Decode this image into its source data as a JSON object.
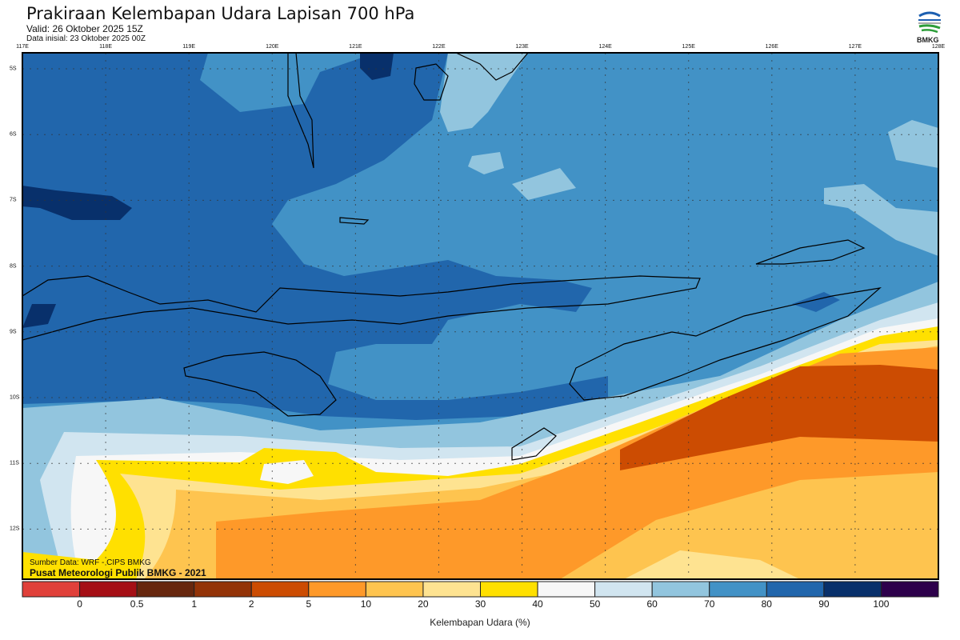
{
  "header": {
    "title": "Prakiraan Kelembapan Udara Lapisan 700 hPa",
    "valid": "Valid: 26 Oktober 2025 15Z",
    "initial": "Data inisial: 23 Oktober 2025 00Z",
    "logo_text": "BMKG"
  },
  "axes": {
    "longitudes": [
      "117E",
      "118E",
      "119E",
      "120E",
      "121E",
      "122E",
      "123E",
      "124E",
      "125E",
      "126E",
      "127E",
      "128E"
    ],
    "latitudes": [
      "5S",
      "6S",
      "7S",
      "8S",
      "9S",
      "10S",
      "11S",
      "12S"
    ]
  },
  "credits": {
    "source": "Sumber Data: WRF - CIPS BMKG",
    "org": "Pusat Meteorologi Publik BMKG - 2021"
  },
  "colorbar": {
    "title": "Kelembapan Udara (%)",
    "labels": [
      "0",
      "0.5",
      "1",
      "2",
      "5",
      "10",
      "20",
      "30",
      "40",
      "50",
      "60",
      "70",
      "80",
      "90",
      "100"
    ],
    "colors": [
      "#e0403a",
      "#a50f15",
      "#67270e",
      "#933307",
      "#cc4c02",
      "#fe9929",
      "#fec44f",
      "#fee391",
      "#ffe000",
      "#f7f7f7",
      "#d1e5f0",
      "#92c5de",
      "#4292c6",
      "#2166ac",
      "#08306b",
      "#2d004b"
    ]
  }
}
